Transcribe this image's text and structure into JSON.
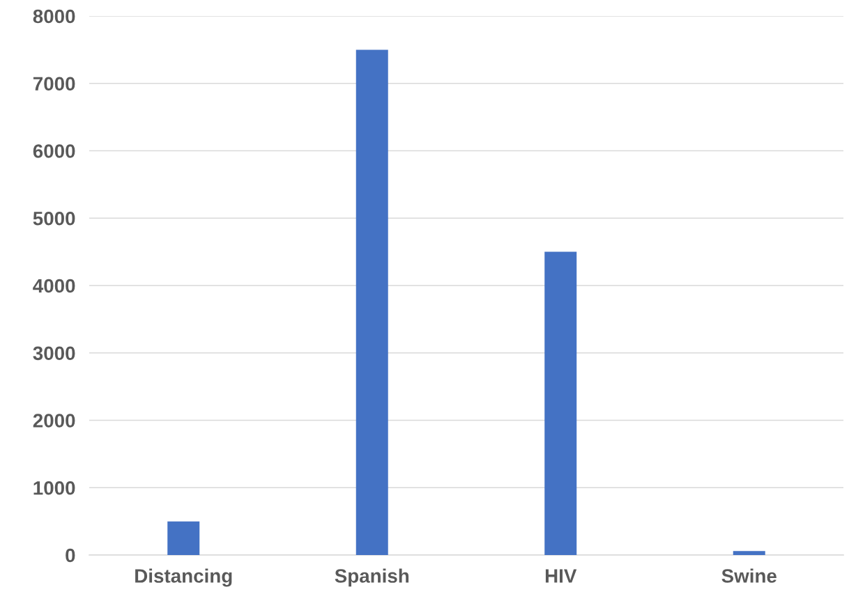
{
  "chart_data": {
    "type": "bar",
    "categories": [
      "Distancing",
      "Spanish",
      "HIV",
      "Swine"
    ],
    "values": [
      500,
      7500,
      4500,
      60
    ],
    "color": "#4472c4",
    "ylim": [
      0,
      8000
    ],
    "yticks": [
      0,
      1000,
      2000,
      3000,
      4000,
      5000,
      6000,
      7000,
      8000
    ],
    "grid": "y"
  }
}
